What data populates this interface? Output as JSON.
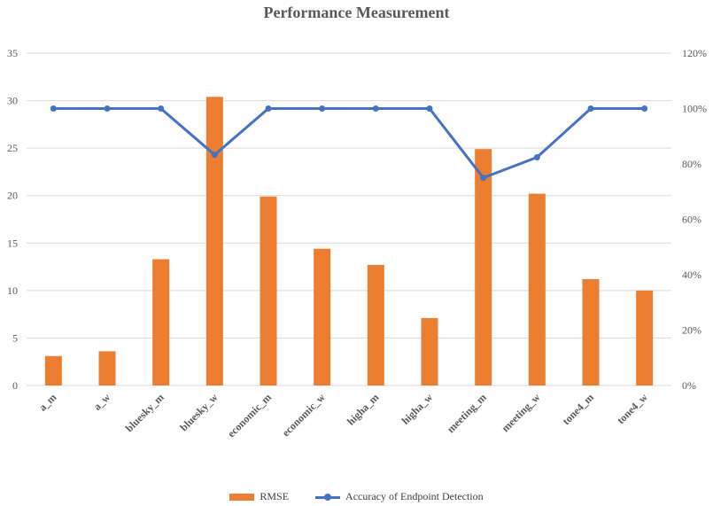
{
  "chart_data": {
    "type": "bar",
    "title": "Performance Measurement",
    "categories": [
      "a_m",
      "a_w",
      "bluesky_m",
      "bluesky_w",
      "economic_m",
      "economic_w",
      "higha_m",
      "higha_w",
      "meeting_m",
      "meeting_w",
      "tone4_m",
      "tone4_w"
    ],
    "series": [
      {
        "name": "RMSE",
        "type": "bar",
        "axis": "left",
        "values": [
          3.1,
          3.6,
          13.3,
          30.4,
          19.9,
          14.4,
          12.7,
          7.1,
          24.9,
          20.2,
          11.2,
          10.0
        ]
      },
      {
        "name": "Accuracy of Endpoint Detection",
        "type": "line",
        "axis": "right",
        "values": [
          100,
          100,
          100,
          83.3,
          100,
          100,
          100,
          100,
          75,
          82.4,
          100,
          100
        ]
      }
    ],
    "y_left": {
      "min": 0,
      "max": 35,
      "ticks": [
        "0",
        "5",
        "10",
        "15",
        "20",
        "25",
        "30",
        "35"
      ]
    },
    "y_right": {
      "min": 0,
      "max": 120,
      "ticks": [
        "0%",
        "20%",
        "40%",
        "60%",
        "80%",
        "100%",
        "120%"
      ]
    },
    "grid": true,
    "legend_position": "bottom",
    "colors": {
      "bar": "#ED7D31",
      "line": "#4472C4",
      "grid": "#D9D9D9"
    }
  }
}
